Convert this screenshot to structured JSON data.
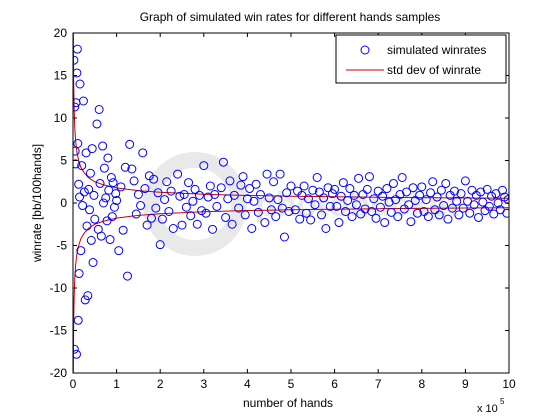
{
  "chart_data": {
    "type": "scatter",
    "title": "Graph of simulated win rates for different hands samples",
    "xlabel": "number of hands",
    "ylabel": "winrate [bb/100hands]",
    "x_multiplier_label": "x 10",
    "x_multiplier_exponent": "5",
    "xlim": [
      0,
      1000000
    ],
    "ylim": [
      -20,
      20
    ],
    "xticks": [
      0,
      100000,
      200000,
      300000,
      400000,
      500000,
      600000,
      700000,
      800000,
      900000,
      1000000
    ],
    "xtick_labels": [
      "0",
      "1",
      "2",
      "3",
      "4",
      "5",
      "6",
      "7",
      "8",
      "9",
      "10"
    ],
    "yticks": [
      -20,
      -15,
      -10,
      -5,
      0,
      5,
      10,
      15,
      20
    ],
    "ytick_labels": [
      "-20",
      "-15",
      "-10",
      "-5",
      "0",
      "5",
      "10",
      "15",
      "20"
    ],
    "legend_position": "top-right",
    "series": [
      {
        "name": "simulated winrates",
        "kind": "scatter",
        "color": "#0000ff",
        "marker": "circle-open",
        "points": [
          [
            2000,
            16.8
          ],
          [
            3000,
            -17.2
          ],
          [
            4000,
            11.3
          ],
          [
            5000,
            6.1
          ],
          [
            6000,
            4.6
          ],
          [
            7000,
            11.8
          ],
          [
            8000,
            -17.8
          ],
          [
            9000,
            15.3
          ],
          [
            10000,
            18.1
          ],
          [
            11000,
            7.0
          ],
          [
            12000,
            -13.8
          ],
          [
            13000,
            2.2
          ],
          [
            14000,
            -8.3
          ],
          [
            15000,
            0.7
          ],
          [
            16000,
            14.0
          ],
          [
            18000,
            -5.6
          ],
          [
            20000,
            4.4
          ],
          [
            22000,
            -0.3
          ],
          [
            24000,
            12.0
          ],
          [
            26000,
            1.3
          ],
          [
            28000,
            -11.4
          ],
          [
            30000,
            5.9
          ],
          [
            32000,
            -2.7
          ],
          [
            34000,
            -10.9
          ],
          [
            36000,
            1.6
          ],
          [
            38000,
            -0.8
          ],
          [
            40000,
            3.5
          ],
          [
            42000,
            -4.4
          ],
          [
            44000,
            6.4
          ],
          [
            46000,
            -7.0
          ],
          [
            48000,
            0.9
          ],
          [
            50000,
            -1.9
          ],
          [
            55000,
            9.3
          ],
          [
            58000,
            -3.1
          ],
          [
            60000,
            11.0
          ],
          [
            62000,
            2.3
          ],
          [
            65000,
            -3.9
          ],
          [
            68000,
            6.7
          ],
          [
            70000,
            0.0
          ],
          [
            72000,
            4.1
          ],
          [
            75000,
            0.6
          ],
          [
            78000,
            -2.1
          ],
          [
            80000,
            5.3
          ],
          [
            82000,
            1.5
          ],
          [
            85000,
            -4.3
          ],
          [
            88000,
            3.0
          ],
          [
            90000,
            -1.6
          ],
          [
            92000,
            2.4
          ],
          [
            95000,
            -0.5
          ],
          [
            98000,
            1.1
          ],
          [
            100000,
            0.3
          ],
          [
            105000,
            -5.6
          ],
          [
            110000,
            1.9
          ],
          [
            115000,
            -3.2
          ],
          [
            120000,
            4.2
          ],
          [
            125000,
            -8.6
          ],
          [
            130000,
            6.9
          ],
          [
            135000,
            4.0
          ],
          [
            140000,
            2.6
          ],
          [
            145000,
            -1.3
          ],
          [
            150000,
            1.0
          ],
          [
            155000,
            -0.3
          ],
          [
            160000,
            5.9
          ],
          [
            165000,
            1.7
          ],
          [
            170000,
            -2.6
          ],
          [
            175000,
            3.2
          ],
          [
            180000,
            -1.8
          ],
          [
            185000,
            2.8
          ],
          [
            190000,
            -0.6
          ],
          [
            195000,
            1.2
          ],
          [
            200000,
            -4.9
          ],
          [
            205000,
            -1.9
          ],
          [
            210000,
            0.4
          ],
          [
            215000,
            2.5
          ],
          [
            220000,
            -1.0
          ],
          [
            225000,
            1.4
          ],
          [
            230000,
            -3.0
          ],
          [
            240000,
            3.4
          ],
          [
            245000,
            0.8
          ],
          [
            250000,
            -2.6
          ],
          [
            255000,
            1.0
          ],
          [
            260000,
            -0.5
          ],
          [
            265000,
            2.4
          ],
          [
            270000,
            -1.5
          ],
          [
            275000,
            0.2
          ],
          [
            280000,
            1.6
          ],
          [
            285000,
            -2.5
          ],
          [
            290000,
            0.9
          ],
          [
            295000,
            -0.9
          ],
          [
            300000,
            4.4
          ],
          [
            305000,
            -1.2
          ],
          [
            310000,
            0.7
          ],
          [
            315000,
            2.0
          ],
          [
            320000,
            -3.1
          ],
          [
            325000,
            1.0
          ],
          [
            330000,
            -0.4
          ],
          [
            340000,
            1.8
          ],
          [
            345000,
            4.8
          ],
          [
            350000,
            -1.7
          ],
          [
            355000,
            0.5
          ],
          [
            360000,
            2.6
          ],
          [
            365000,
            -2.5
          ],
          [
            370000,
            0.9
          ],
          [
            380000,
            -0.6
          ],
          [
            385000,
            2.1
          ],
          [
            390000,
            3.1
          ],
          [
            395000,
            -1.4
          ],
          [
            400000,
            0.5
          ],
          [
            405000,
            1.7
          ],
          [
            410000,
            -3.0
          ],
          [
            415000,
            0.2
          ],
          [
            420000,
            2.2
          ],
          [
            425000,
            -1.1
          ],
          [
            430000,
            1.0
          ],
          [
            440000,
            -2.3
          ],
          [
            445000,
            3.4
          ],
          [
            450000,
            0.6
          ],
          [
            455000,
            -0.8
          ],
          [
            460000,
            2.5
          ],
          [
            465000,
            -1.6
          ],
          [
            470000,
            0.4
          ],
          [
            475000,
            3.4
          ],
          [
            480000,
            -0.6
          ],
          [
            485000,
            -4.0
          ],
          [
            490000,
            1.2
          ],
          [
            495000,
            -1.0
          ],
          [
            500000,
            2.0
          ],
          [
            510000,
            -0.8
          ],
          [
            515000,
            1.4
          ],
          [
            520000,
            -1.9
          ],
          [
            525000,
            0.9
          ],
          [
            530000,
            2.0
          ],
          [
            535000,
            -1.2
          ],
          [
            540000,
            0.5
          ],
          [
            545000,
            -2.0
          ],
          [
            550000,
            1.5
          ],
          [
            555000,
            -0.2
          ],
          [
            560000,
            3.0
          ],
          [
            565000,
            1.3
          ],
          [
            570000,
            -1.4
          ],
          [
            575000,
            0.6
          ],
          [
            580000,
            -3.0
          ],
          [
            585000,
            1.8
          ],
          [
            590000,
            -0.4
          ],
          [
            595000,
            1.1
          ],
          [
            600000,
            1.6
          ],
          [
            605000,
            -0.4
          ],
          [
            610000,
            -2.3
          ],
          [
            615000,
            0.8
          ],
          [
            620000,
            2.4
          ],
          [
            625000,
            -1.0
          ],
          [
            630000,
            0.3
          ],
          [
            635000,
            1.7
          ],
          [
            640000,
            -1.6
          ],
          [
            645000,
            0.9
          ],
          [
            650000,
            -0.2
          ],
          [
            655000,
            2.9
          ],
          [
            660000,
            -1.3
          ],
          [
            665000,
            1.0
          ],
          [
            670000,
            -0.7
          ],
          [
            675000,
            1.6
          ],
          [
            680000,
            3.1
          ],
          [
            685000,
            -1.0
          ],
          [
            690000,
            0.5
          ],
          [
            695000,
            -1.8
          ],
          [
            700000,
            1.4
          ],
          [
            705000,
            -0.5
          ],
          [
            710000,
            0.8
          ],
          [
            715000,
            -2.3
          ],
          [
            720000,
            1.7
          ],
          [
            725000,
            0.1
          ],
          [
            730000,
            -1.1
          ],
          [
            735000,
            2.3
          ],
          [
            740000,
            0.4
          ],
          [
            745000,
            -1.6
          ],
          [
            750000,
            1.0
          ],
          [
            755000,
            3.0
          ],
          [
            760000,
            -0.7
          ],
          [
            765000,
            1.3
          ],
          [
            770000,
            -0.2
          ],
          [
            775000,
            -2.2
          ],
          [
            780000,
            1.8
          ],
          [
            785000,
            0.3
          ],
          [
            790000,
            -1.2
          ],
          [
            795000,
            0.9
          ],
          [
            800000,
            1.9
          ],
          [
            805000,
            -1.0
          ],
          [
            810000,
            0.4
          ],
          [
            815000,
            -1.6
          ],
          [
            820000,
            1.2
          ],
          [
            825000,
            2.5
          ],
          [
            830000,
            -0.8
          ],
          [
            835000,
            0.7
          ],
          [
            840000,
            -1.4
          ],
          [
            845000,
            1.5
          ],
          [
            850000,
            -0.3
          ],
          [
            855000,
            2.3
          ],
          [
            860000,
            -1.9
          ],
          [
            865000,
            0.9
          ],
          [
            870000,
            -0.6
          ],
          [
            875000,
            1.4
          ],
          [
            880000,
            0.2
          ],
          [
            885000,
            -1.4
          ],
          [
            890000,
            1.1
          ],
          [
            895000,
            -0.6
          ],
          [
            900000,
            2.6
          ],
          [
            905000,
            0.2
          ],
          [
            910000,
            -1.2
          ],
          [
            915000,
            1.5
          ],
          [
            920000,
            -0.2
          ],
          [
            925000,
            0.9
          ],
          [
            930000,
            -1.7
          ],
          [
            935000,
            1.3
          ],
          [
            940000,
            0.1
          ],
          [
            945000,
            -0.9
          ],
          [
            950000,
            1.6
          ],
          [
            955000,
            -0.4
          ],
          [
            960000,
            0.8
          ],
          [
            965000,
            -1.3
          ],
          [
            970000,
            1.1
          ],
          [
            975000,
            0.0
          ],
          [
            980000,
            -0.8
          ],
          [
            985000,
            1.5
          ],
          [
            990000,
            0.7
          ],
          [
            995000,
            -1.2
          ],
          [
            998000,
            0.4
          ]
        ]
      },
      {
        "name": "std dev of winrate",
        "kind": "line",
        "color": "#cc0000",
        "points": [
          [
            800,
            20
          ],
          [
            1500,
            14.6
          ],
          [
            2500,
            11.3
          ],
          [
            4000,
            8.9
          ],
          [
            6000,
            7.3
          ],
          [
            9000,
            6.0
          ],
          [
            13000,
            5.0
          ],
          [
            18000,
            4.2
          ],
          [
            25000,
            3.6
          ],
          [
            35000,
            3.0
          ],
          [
            50000,
            2.5
          ],
          [
            70000,
            2.13
          ],
          [
            100000,
            1.78
          ],
          [
            150000,
            1.45
          ],
          [
            200000,
            1.26
          ],
          [
            300000,
            1.03
          ],
          [
            400000,
            0.89
          ],
          [
            500000,
            0.8
          ],
          [
            600000,
            0.73
          ],
          [
            700000,
            0.67
          ],
          [
            800000,
            0.63
          ],
          [
            900000,
            0.59
          ],
          [
            1000000,
            0.56
          ]
        ]
      }
    ]
  }
}
